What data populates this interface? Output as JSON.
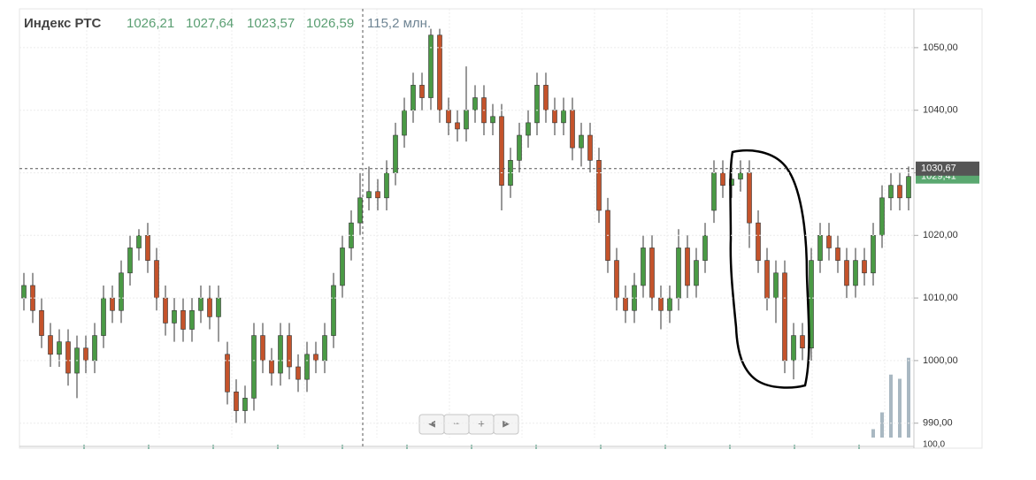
{
  "chart_data": {
    "type": "candlestick",
    "title": "Индекс РТС",
    "header_values": [
      "1026,21",
      "1027,64",
      "1023,57",
      "1026,59"
    ],
    "header_volume": "115,2 млн.",
    "open": [
      1010,
      1012,
      1008,
      1004,
      1001,
      1003,
      998,
      1002,
      1000,
      1004,
      1010,
      1008,
      1014,
      1018,
      1020,
      1016,
      1010,
      1006,
      1008,
      1005,
      1008,
      1010,
      1007,
      1001,
      995,
      992,
      994,
      1004,
      1000,
      998,
      1004,
      999,
      997,
      1001,
      1000,
      1004,
      1012,
      1018,
      1022,
      1026,
      1027,
      1026,
      1030,
      1036,
      1040,
      1044,
      1042,
      1052,
      1040,
      1038,
      1037,
      1040,
      1042,
      1038,
      1039,
      1028,
      1032,
      1036,
      1038,
      1044,
      1040,
      1038,
      1040,
      1034,
      1036,
      1032,
      1024,
      1016,
      1010,
      1008,
      1012,
      1018,
      1010,
      1008,
      1010,
      1018,
      1012,
      1016,
      1024,
      1030,
      1028,
      1029,
      1030,
      1022,
      1016,
      1010,
      1014,
      1000,
      1004,
      1002,
      1016,
      1020,
      1018,
      1016,
      1012,
      1016,
      1014,
      1020,
      1026,
      1028,
      1026
    ],
    "high": [
      1014,
      1014,
      1010,
      1006,
      1005,
      1005,
      1004,
      1004,
      1006,
      1012,
      1012,
      1016,
      1020,
      1021,
      1022,
      1018,
      1012,
      1010,
      1010,
      1010,
      1012,
      1012,
      1012,
      1003,
      997,
      996,
      1006,
      1006,
      1002,
      1006,
      1006,
      1001,
      1003,
      1003,
      1006,
      1014,
      1020,
      1024,
      1030,
      1031,
      1029,
      1032,
      1038,
      1042,
      1046,
      1046,
      1053,
      1053,
      1042,
      1040,
      1047,
      1044,
      1044,
      1041,
      1041,
      1034,
      1038,
      1040,
      1046,
      1046,
      1042,
      1042,
      1042,
      1038,
      1038,
      1034,
      1026,
      1018,
      1012,
      1014,
      1020,
      1020,
      1012,
      1012,
      1021,
      1020,
      1018,
      1022,
      1032,
      1032,
      1031,
      1032,
      1032,
      1024,
      1018,
      1016,
      1016,
      1006,
      1006,
      1018,
      1022,
      1022,
      1020,
      1018,
      1018,
      1018,
      1022,
      1028,
      1030,
      1030,
      1031
    ],
    "low": [
      1008,
      1006,
      1002,
      999,
      999,
      996,
      994,
      998,
      998,
      1002,
      1006,
      1006,
      1012,
      1016,
      1014,
      1008,
      1004,
      1003,
      1003,
      1003,
      1006,
      1005,
      1003,
      993,
      990,
      990,
      992,
      998,
      996,
      996,
      997,
      995,
      995,
      998,
      998,
      1002,
      1010,
      1016,
      1020,
      1024,
      1024,
      1024,
      1028,
      1034,
      1038,
      1040,
      1040,
      1038,
      1036,
      1035,
      1035,
      1038,
      1036,
      1036,
      1024,
      1026,
      1030,
      1034,
      1036,
      1038,
      1036,
      1036,
      1032,
      1031,
      1030,
      1022,
      1014,
      1008,
      1006,
      1006,
      1010,
      1008,
      1005,
      1006,
      1008,
      1010,
      1010,
      1014,
      1022,
      1026,
      1026,
      1027,
      1018,
      1014,
      1008,
      1006,
      998,
      997,
      1000,
      1000,
      1014,
      1016,
      1014,
      1010,
      1010,
      1012,
      1012,
      1018,
      1024,
      1024,
      1024
    ],
    "close": [
      1012,
      1008,
      1004,
      1001,
      1003,
      998,
      1002,
      1000,
      1004,
      1010,
      1008,
      1014,
      1018,
      1020,
      1016,
      1010,
      1006,
      1008,
      1005,
      1008,
      1010,
      1007,
      1010,
      995,
      992,
      994,
      1004,
      1000,
      998,
      1004,
      999,
      997,
      1001,
      1000,
      1004,
      1012,
      1018,
      1022,
      1026,
      1027,
      1026,
      1030,
      1036,
      1040,
      1044,
      1042,
      1052,
      1040,
      1038,
      1037,
      1040,
      1042,
      1038,
      1039,
      1028,
      1032,
      1036,
      1038,
      1044,
      1040,
      1038,
      1040,
      1034,
      1036,
      1032,
      1024,
      1016,
      1010,
      1008,
      1012,
      1018,
      1010,
      1008,
      1010,
      1018,
      1012,
      1016,
      1020,
      1030,
      1028,
      1029,
      1030,
      1022,
      1016,
      1010,
      1014,
      1000,
      1004,
      1002,
      1016,
      1020,
      1018,
      1016,
      1012,
      1016,
      1014,
      1020,
      1026,
      1028,
      1026,
      1029.41
    ],
    "colors": {
      "up": "#4a9a45",
      "down": "#c4532b"
    },
    "ylim": [
      987.7,
      1056.2
    ],
    "yticks": [
      {
        "value": 990,
        "label": "990,00"
      },
      {
        "value": 1000,
        "label": "1000,00"
      },
      {
        "value": 1010,
        "label": "1010,00"
      },
      {
        "value": 1020,
        "label": "1020,00"
      },
      {
        "value": 1030,
        "label": "1030,00"
      },
      {
        "value": 1040,
        "label": "1040,00"
      },
      {
        "value": 1050,
        "label": "1050,00"
      }
    ],
    "grid": true,
    "crosshair": {
      "value": 1030.67,
      "label": "1030,67"
    },
    "last_price": {
      "value": 1029.41,
      "label": "1029,41"
    },
    "volume": {
      "x": [
        96,
        97,
        98,
        99,
        100
      ],
      "values": [
        10,
        30,
        75,
        70,
        95
      ],
      "vlim": [
        0,
        100
      ],
      "axis_label": "100,0",
      "color": "#a9b8c2"
    },
    "navigation": [
      "◄",
      "−",
      "+",
      "►"
    ]
  }
}
